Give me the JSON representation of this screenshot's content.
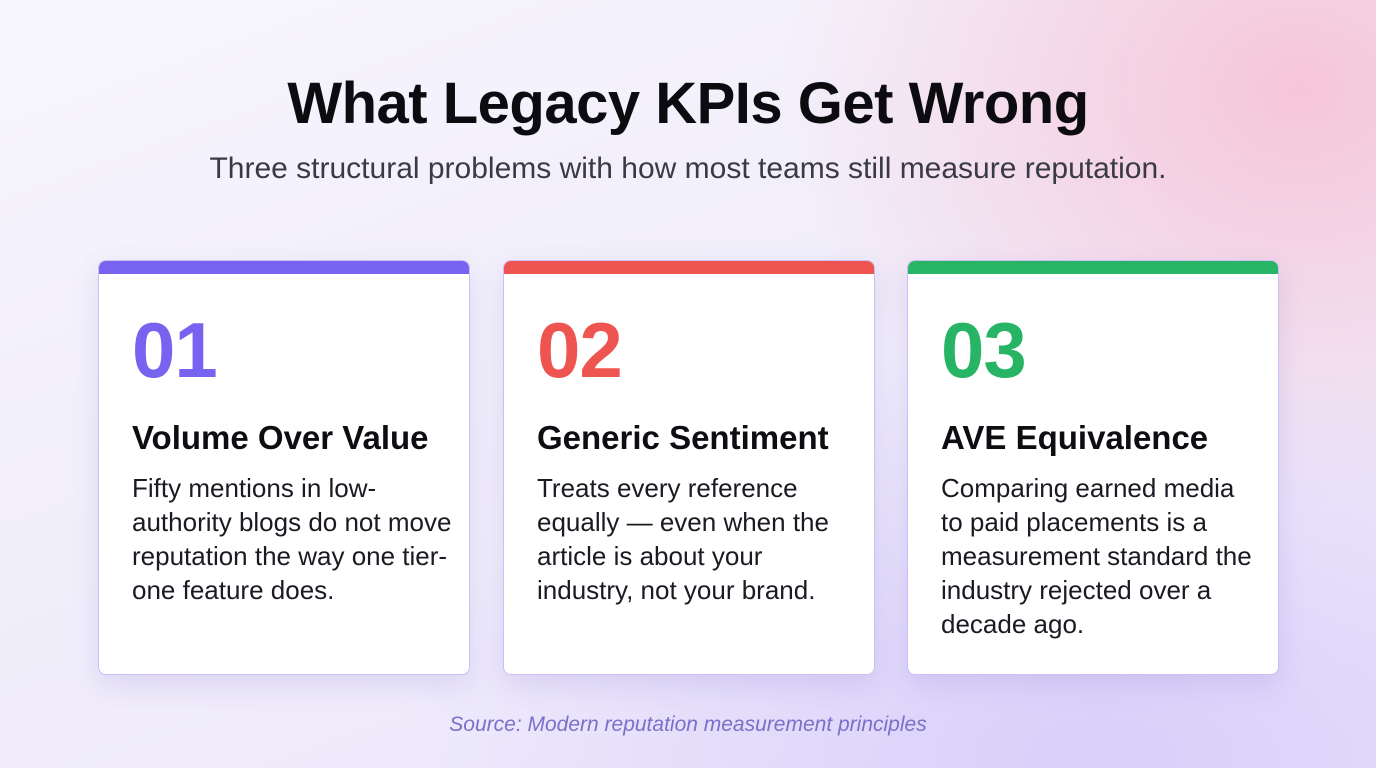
{
  "header": {
    "title": "What Legacy KPIs Get Wrong",
    "subtitle": "Three structural problems with how most teams still measure reputation."
  },
  "cards": [
    {
      "number": "01",
      "heading": "Volume Over Value",
      "body": "Fifty mentions in low-authority blogs do not move reputation the way one tier-one feature does.",
      "accent": "#7763f0"
    },
    {
      "number": "02",
      "heading": "Generic Sentiment",
      "body": "Treats every reference equally — even when the article is about your industry, not your brand.",
      "accent": "#ef5550"
    },
    {
      "number": "03",
      "heading": "AVE Equivalence",
      "body": "Comparing earned media to paid placements is a measurement standard the industry rejected over a decade ago.",
      "accent": "#27b565"
    }
  ],
  "footer": {
    "source": "Source: Modern reputation measurement principles"
  }
}
